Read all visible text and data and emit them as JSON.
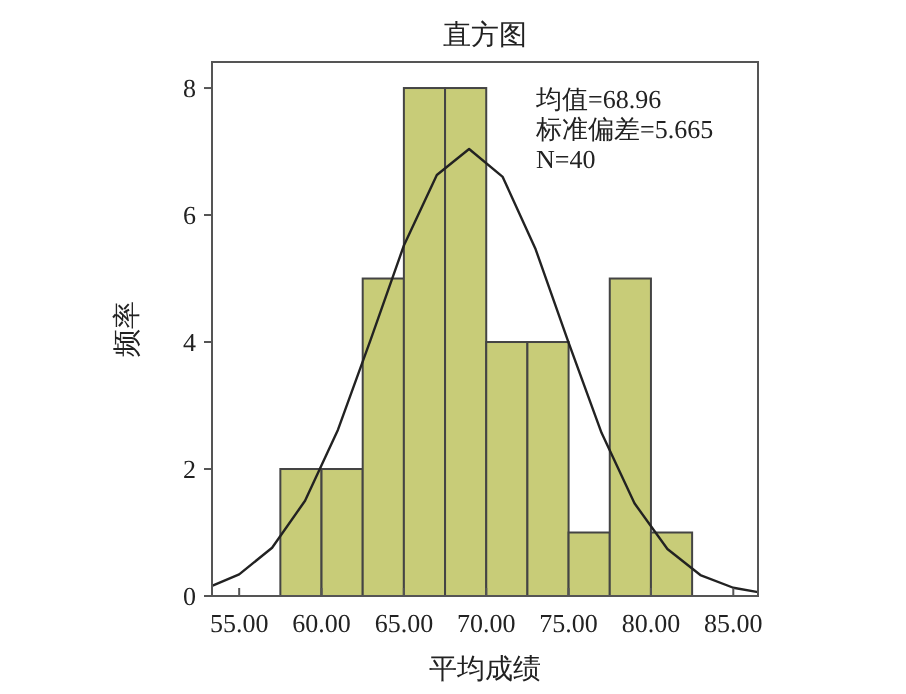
{
  "chart_data": {
    "type": "histogram",
    "title": "直方图",
    "xlabel": "平均成绩",
    "ylabel": "频率",
    "xlim": [
      53.35,
      86.5
    ],
    "ylim": [
      0,
      8.41
    ],
    "xticks": [
      {
        "value": 55,
        "label": "55.00"
      },
      {
        "value": 60,
        "label": "60.00"
      },
      {
        "value": 65,
        "label": "65.00"
      },
      {
        "value": 70,
        "label": "70.00"
      },
      {
        "value": 75,
        "label": "75.00"
      },
      {
        "value": 80,
        "label": "80.00"
      },
      {
        "value": 85,
        "label": "85.00"
      }
    ],
    "yticks": [
      0,
      2,
      4,
      6,
      8
    ],
    "series": [
      {
        "color": "#c8cc78",
        "bins": [
          57.5,
          60,
          62.5,
          65,
          67.5,
          70,
          72.5,
          75,
          77.5,
          80,
          82.5
        ],
        "values": [
          2,
          2,
          5,
          8,
          8,
          4,
          4,
          1,
          5,
          1
        ]
      },
      {
        "type": "line",
        "color": "#222222",
        "x": [
          53.35,
          55,
          57,
          59,
          61,
          63,
          65,
          67,
          68.96,
          71,
          73,
          75,
          77,
          79,
          81,
          83,
          85,
          86.5
        ],
        "values": [
          0.16,
          0.34,
          0.76,
          1.5,
          2.62,
          4.05,
          5.52,
          6.63,
          7.04,
          6.6,
          5.46,
          3.99,
          2.57,
          1.46,
          0.74,
          0.33,
          0.13,
          0.06
        ]
      }
    ],
    "annotations": [
      "均值=68.96",
      "标准偏差=5.665",
      "N=40"
    ]
  }
}
